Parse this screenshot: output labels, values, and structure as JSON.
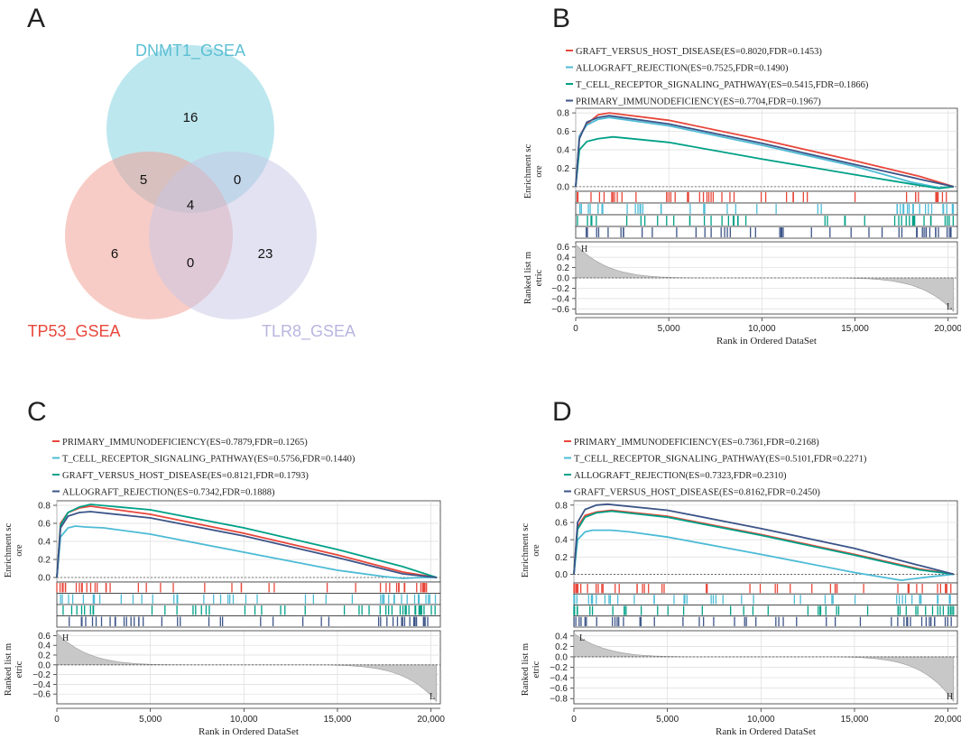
{
  "panel_labels": {
    "a": "A",
    "b": "B",
    "c": "C",
    "d": "D"
  },
  "venn": {
    "sets": [
      {
        "name": "DNMT1_GSEA",
        "color": "#7ccfdd",
        "label_color": "#5bbfd4"
      },
      {
        "name": "TP53_GSEA",
        "color": "#f29a8e",
        "label_color": "#e8473a"
      },
      {
        "name": "TLR8_GSEA",
        "color": "#c7c5e6",
        "label_color": "#b8b5de"
      }
    ],
    "counts": {
      "dnmt1_only": "16",
      "dnmt1_tp53": "5",
      "dnmt1_tlr8": "0",
      "all_three": "4",
      "tp53_only": "6",
      "tp53_tlr8": "0",
      "tlr8_only": "23"
    }
  },
  "chart_data": [
    {
      "panel": "B",
      "type": "line",
      "title": "",
      "xlabel": "Rank in Ordered DataSet",
      "ylabel_top": "Enrichment score",
      "ylabel_top_lines": [
        "Enrichment sc",
        "ore"
      ],
      "ylabel_bottom_lines": [
        "Ranked list m",
        "etric"
      ],
      "xlim": [
        0,
        20500
      ],
      "x_ticks": [
        0,
        5000,
        10000,
        15000,
        20000
      ],
      "x_tick_labels": [
        "0",
        "5,000",
        "10,000",
        "15,000",
        "20,000"
      ],
      "es_ylim": [
        -0.05,
        0.85
      ],
      "es_ticks": [
        0.0,
        0.2,
        0.4,
        0.6,
        0.8
      ],
      "es_tick_labels": [
        "0.0",
        "0.2",
        "0.4",
        "0.6",
        "0.8"
      ],
      "metric_ylim": [
        -0.7,
        0.7
      ],
      "metric_ticks": [
        0.6,
        0.4,
        0.2,
        0.0,
        -0.2,
        -0.4,
        -0.6
      ],
      "metric_tick_labels": [
        "0.6",
        "0.4",
        "0.2",
        "0.0",
        "−0.2",
        "−0.4",
        "−0.6"
      ],
      "metric_top": 0.65,
      "metric_bottom": -0.65,
      "metric_top_label": "H",
      "metric_bottom_label": "L",
      "series": [
        {
          "name": "GRAFT_VERSUS_HOST_DISEASE",
          "legend": "GRAFT_VERSUS_HOST_DISEASE(ES=0.8020,FDR=0.1453)",
          "color": "#e8473a",
          "x": [
            0,
            200,
            600,
            1200,
            1800,
            5000,
            10000,
            15000,
            18500,
            20300
          ],
          "y": [
            0,
            0.55,
            0.68,
            0.78,
            0.8,
            0.72,
            0.51,
            0.28,
            0.11,
            0.0
          ]
        },
        {
          "name": "ALLOGRAFT_REJECTION",
          "legend": "ALLOGRAFT_REJECTION(ES=0.7525,FDR=0.1490)",
          "color": "#4dbbd5",
          "x": [
            0,
            200,
            600,
            1200,
            1800,
            5000,
            10000,
            15000,
            18000,
            19500,
            20300
          ],
          "y": [
            0,
            0.55,
            0.67,
            0.73,
            0.75,
            0.66,
            0.45,
            0.22,
            0.05,
            -0.01,
            0.0
          ]
        },
        {
          "name": "T_CELL_RECEPTOR_SIGNALING_PATHWAY",
          "legend": "T_CELL_RECEPTOR_SIGNALING_PATHWAY(ES=0.5415,FDR=0.1866)",
          "color": "#00a087",
          "x": [
            0,
            200,
            600,
            1200,
            2000,
            3000,
            5000,
            10000,
            15000,
            18000,
            19500,
            20300
          ],
          "y": [
            0,
            0.4,
            0.49,
            0.52,
            0.54,
            0.52,
            0.48,
            0.3,
            0.13,
            0.03,
            -0.02,
            0.0
          ]
        },
        {
          "name": "PRIMARY_IMMUNODEFICIENCY",
          "legend": "PRIMARY_IMMUNODEFICIENCY(ES=0.7704,FDR=0.1967)",
          "color": "#3c5488",
          "x": [
            0,
            200,
            600,
            1200,
            1800,
            5000,
            10000,
            15000,
            18500,
            20300
          ],
          "y": [
            0,
            0.52,
            0.7,
            0.75,
            0.77,
            0.68,
            0.47,
            0.24,
            0.08,
            0.0
          ]
        }
      ]
    },
    {
      "panel": "C",
      "type": "line",
      "title": "",
      "xlabel": "Rank in Ordered DataSet",
      "ylabel_top": "Enrichment score",
      "ylabel_top_lines": [
        "Enrichment sc",
        "ore"
      ],
      "ylabel_bottom_lines": [
        "Ranked list m",
        "etric"
      ],
      "xlim": [
        0,
        20500
      ],
      "x_ticks": [
        0,
        5000,
        10000,
        15000,
        20000
      ],
      "x_tick_labels": [
        "0",
        "5,000",
        "10,000",
        "15,000",
        "20,000"
      ],
      "es_ylim": [
        -0.05,
        0.85
      ],
      "es_ticks": [
        0.0,
        0.2,
        0.4,
        0.6,
        0.8
      ],
      "es_tick_labels": [
        "0.0",
        "0.2",
        "0.4",
        "0.6",
        "0.8"
      ],
      "metric_ylim": [
        -0.8,
        0.7
      ],
      "metric_ticks": [
        0.6,
        0.4,
        0.2,
        0.0,
        -0.2,
        -0.4,
        -0.6
      ],
      "metric_tick_labels": [
        "0.6",
        "0.4",
        "0.2",
        "0.0",
        "−0.2",
        "−0.4",
        "−0.6"
      ],
      "metric_top": 0.65,
      "metric_bottom": -0.75,
      "metric_top_label": "H",
      "metric_bottom_label": "L",
      "series": [
        {
          "name": "PRIMARY_IMMUNODEFICIENCY",
          "legend": "PRIMARY_IMMUNODEFICIENCY(ES=0.7879,FDR=0.1265)",
          "color": "#e8473a",
          "x": [
            0,
            200,
            600,
            1200,
            1800,
            5000,
            10000,
            15000,
            18500,
            20300
          ],
          "y": [
            0,
            0.6,
            0.72,
            0.77,
            0.79,
            0.7,
            0.49,
            0.25,
            0.06,
            0.0
          ]
        },
        {
          "name": "T_CELL_RECEPTOR_SIGNALING_PATHWAY",
          "legend": "T_CELL_RECEPTOR_SIGNALING_PATHWAY(ES=0.5756,FDR=0.1440)",
          "color": "#4dbbd5",
          "x": [
            0,
            200,
            600,
            1000,
            1500,
            2500,
            5000,
            10000,
            15000,
            17500,
            18500,
            19500,
            20300
          ],
          "y": [
            0,
            0.45,
            0.55,
            0.57,
            0.56,
            0.55,
            0.48,
            0.28,
            0.08,
            0.01,
            -0.01,
            0.0,
            0.0
          ]
        },
        {
          "name": "GRAFT_VERSUS_HOST_DISEASE",
          "legend": "GRAFT_VERSUS_HOST_DISEASE(ES=0.8121,FDR=0.1793)",
          "color": "#00a087",
          "x": [
            0,
            200,
            600,
            1200,
            1800,
            5000,
            10000,
            15000,
            18500,
            20300
          ],
          "y": [
            0,
            0.58,
            0.72,
            0.78,
            0.81,
            0.75,
            0.55,
            0.31,
            0.12,
            0.0
          ]
        },
        {
          "name": "ALLOGRAFT_REJECTION",
          "legend": "ALLOGRAFT_REJECTION(ES=0.7342,FDR=0.1888)",
          "color": "#3c5488",
          "x": [
            0,
            200,
            600,
            1200,
            1800,
            5000,
            10000,
            15000,
            18500,
            20300
          ],
          "y": [
            0,
            0.55,
            0.68,
            0.72,
            0.73,
            0.66,
            0.46,
            0.22,
            0.04,
            0.0
          ]
        }
      ]
    },
    {
      "panel": "D",
      "type": "line",
      "title": "",
      "xlabel": "Rank in Ordered DataSet",
      "ylabel_top": "Enrichment score",
      "ylabel_top_lines": [
        "Enrichment sc",
        "ore"
      ],
      "ylabel_bottom_lines": [
        "Ranked list m",
        "etric"
      ],
      "xlim": [
        0,
        20500
      ],
      "x_ticks": [
        0,
        5000,
        10000,
        15000,
        20000
      ],
      "x_tick_labels": [
        "0",
        "5,000",
        "10,000",
        "15,000",
        "20,000"
      ],
      "es_ylim": [
        -0.1,
        0.85
      ],
      "es_ticks": [
        0.0,
        0.2,
        0.4,
        0.6,
        0.8
      ],
      "es_tick_labels": [
        "0.0",
        "0.2",
        "0.4",
        "0.6",
        "0.8"
      ],
      "metric_ylim": [
        -0.9,
        0.5
      ],
      "metric_ticks": [
        0.4,
        0.2,
        0.0,
        -0.2,
        -0.4,
        -0.6,
        -0.8
      ],
      "metric_tick_labels": [
        "0.4",
        "0.2",
        "0.0",
        "−0.2",
        "−0.4",
        "−0.6",
        "−0.8"
      ],
      "metric_top": 0.45,
      "metric_bottom": -0.85,
      "metric_top_label": "L",
      "metric_bottom_label": "H",
      "series": [
        {
          "name": "PRIMARY_IMMUNODEFICIENCY",
          "legend": "PRIMARY_IMMUNODEFICIENCY(ES=0.7361,FDR=0.2168)",
          "color": "#e8473a",
          "x": [
            0,
            200,
            600,
            1200,
            2000,
            5000,
            10000,
            15000,
            18500,
            20300
          ],
          "y": [
            0,
            0.55,
            0.68,
            0.72,
            0.74,
            0.67,
            0.46,
            0.23,
            0.06,
            0.0
          ]
        },
        {
          "name": "T_CELL_RECEPTOR_SIGNALING_PATHWAY",
          "legend": "T_CELL_RECEPTOR_SIGNALING_PATHWAY(ES=0.5101,FDR=0.2271)",
          "color": "#4dbbd5",
          "x": [
            0,
            200,
            600,
            1000,
            2000,
            3000,
            5000,
            10000,
            15000,
            17500,
            19000,
            20300
          ],
          "y": [
            0,
            0.4,
            0.49,
            0.51,
            0.51,
            0.49,
            0.43,
            0.23,
            0.02,
            -0.07,
            -0.03,
            0.0
          ]
        },
        {
          "name": "ALLOGRAFT_REJECTION",
          "legend": "ALLOGRAFT_REJECTION(ES=0.7323,FDR=0.2310)",
          "color": "#00a087",
          "x": [
            0,
            200,
            600,
            1200,
            2000,
            5000,
            10000,
            15000,
            18500,
            20300
          ],
          "y": [
            0,
            0.52,
            0.66,
            0.71,
            0.73,
            0.66,
            0.45,
            0.22,
            0.05,
            0.0
          ]
        },
        {
          "name": "GRAFT_VERSUS_HOST_DISEASE",
          "legend": "GRAFT_VERSUS_HOST_DISEASE(ES=0.8162,FDR=0.2450)",
          "color": "#3c5488",
          "x": [
            0,
            200,
            600,
            1200,
            1800,
            5000,
            10000,
            15000,
            18500,
            20300
          ],
          "y": [
            0,
            0.6,
            0.75,
            0.8,
            0.81,
            0.74,
            0.53,
            0.3,
            0.1,
            0.0
          ]
        }
      ]
    }
  ]
}
